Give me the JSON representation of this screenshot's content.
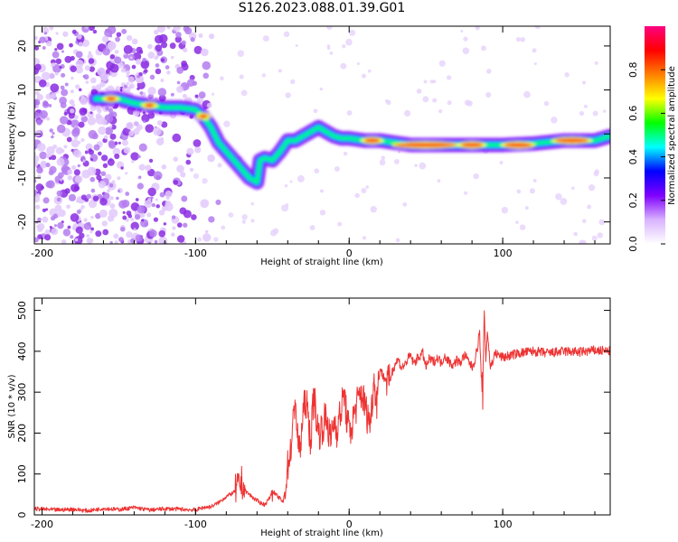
{
  "title": "S126.2023.088.01.39.G01",
  "chart_data": [
    {
      "type": "heatmap",
      "xlabel": "Height of straight line (km)",
      "ylabel": "Frequency (Hz)",
      "xlim": [
        -205,
        170
      ],
      "ylim": [
        -25,
        24.5
      ],
      "x_ticks": [
        -200,
        -100,
        0,
        100
      ],
      "y_ticks": [
        -20,
        -10,
        0,
        10,
        20
      ],
      "colorbar": {
        "label": "Normalized spectral amplitude",
        "range": [
          0,
          1
        ],
        "ticks": [
          0.0,
          0.2,
          0.4,
          0.6,
          0.8
        ],
        "tick_labels": [
          "0.0",
          "0.2",
          "0.4",
          "0.6",
          "0.8"
        ],
        "colors": [
          "#ffffff",
          "#d9b3ff",
          "#8000ff",
          "#0000ff",
          "#00ffff",
          "#00ff00",
          "#ffff00",
          "#ff8000",
          "#ff0000",
          "#ff0080"
        ]
      },
      "ridge": {
        "x": [
          -165,
          -150,
          -140,
          -130,
          -120,
          -110,
          -100,
          -95,
          -90,
          -85,
          -80,
          -75,
          -70,
          -65,
          -60,
          -58,
          -55,
          -50,
          -45,
          -40,
          -35,
          -30,
          -25,
          -20,
          -15,
          -10,
          -5,
          0,
          10,
          20,
          30,
          40,
          60,
          80,
          90,
          100,
          120,
          140,
          160,
          170
        ],
        "y": [
          8,
          8,
          7,
          6.5,
          6,
          6,
          5.5,
          4,
          1.5,
          -2,
          -4,
          -6,
          -8,
          -10,
          -11,
          -6,
          -5.5,
          -6,
          -4,
          -1.5,
          -1.5,
          -0.5,
          0.5,
          1.5,
          0.5,
          -0.5,
          -1,
          -1,
          -1.5,
          -1.5,
          -2,
          -2.5,
          -2.5,
          -2.5,
          -2.5,
          -2.5,
          -2.2,
          -1.5,
          -1.5,
          -0.5
        ]
      }
    },
    {
      "type": "line",
      "xlabel": "Height of straight line (km)",
      "ylabel": "SNR (10 * v/v)",
      "xlim": [
        -205,
        170
      ],
      "ylim": [
        0,
        530
      ],
      "x_ticks": [
        -200,
        -100,
        0,
        100
      ],
      "y_ticks": [
        0,
        100,
        200,
        300,
        400,
        500
      ],
      "series": [
        {
          "color": "#ee3333",
          "x": [
            -205,
            -190,
            -180,
            -170,
            -160,
            -150,
            -140,
            -130,
            -120,
            -110,
            -100,
            -95,
            -90,
            -85,
            -80,
            -75,
            -70,
            -68,
            -65,
            -62,
            -60,
            -58,
            -55,
            -52,
            -50,
            -48,
            -45,
            -43,
            -42,
            -40,
            -38,
            -36,
            -35,
            -34,
            -32,
            -30,
            -28,
            -27,
            -25,
            -23,
            -22,
            -20,
            -18,
            -16,
            -15,
            -12,
            -10,
            -8,
            -5,
            -3,
            -2,
            0,
            2,
            4,
            6,
            8,
            10,
            12,
            14,
            16,
            18,
            20,
            22,
            24,
            26,
            28,
            30,
            32,
            34,
            36,
            38,
            40,
            42,
            45,
            48,
            50,
            52,
            55,
            58,
            60,
            62,
            65,
            68,
            70,
            72,
            75,
            78,
            80,
            82,
            84,
            85,
            86,
            87,
            88,
            89,
            90,
            92,
            95,
            100,
            105,
            110,
            120,
            130,
            140,
            150,
            160,
            170
          ],
          "y": [
            15,
            12,
            14,
            10,
            16,
            13,
            18,
            12,
            15,
            14,
            12,
            18,
            20,
            30,
            45,
            55,
            80,
            60,
            50,
            40,
            35,
            30,
            25,
            40,
            60,
            50,
            40,
            30,
            55,
            120,
            160,
            240,
            300,
            200,
            150,
            250,
            280,
            240,
            180,
            300,
            260,
            200,
            210,
            230,
            240,
            180,
            230,
            210,
            260,
            300,
            250,
            200,
            220,
            260,
            280,
            300,
            270,
            240,
            230,
            330,
            280,
            360,
            340,
            330,
            320,
            350,
            370,
            380,
            360,
            365,
            380,
            390,
            370,
            385,
            395,
            360,
            380,
            375,
            385,
            370,
            390,
            375,
            365,
            380,
            370,
            390,
            375,
            360,
            380,
            420,
            450,
            330,
            300,
            500,
            380,
            450,
            360,
            395,
            385,
            390,
            395,
            400,
            395,
            400,
            398,
            402,
            400
          ]
        }
      ]
    }
  ]
}
